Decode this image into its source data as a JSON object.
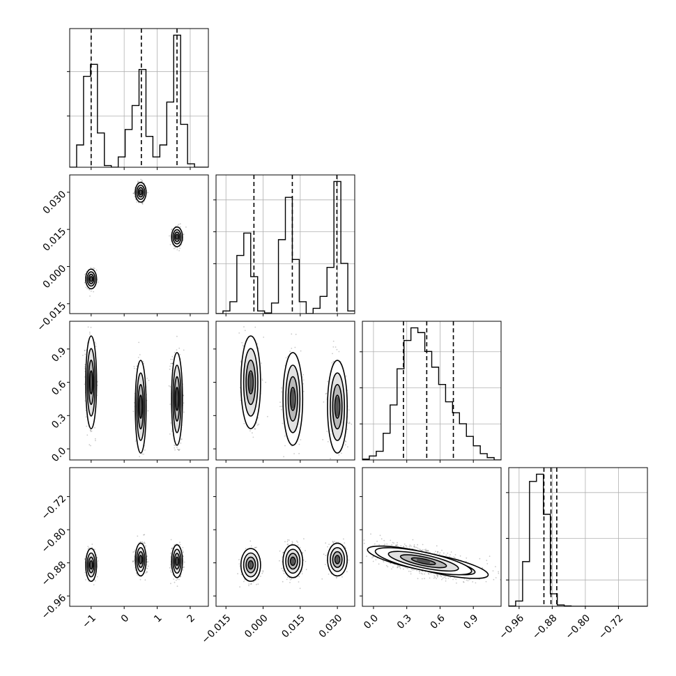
{
  "chart_data": {
    "type": "corner",
    "title": "",
    "parameters": [
      {
        "label": "",
        "range": [
          -1.65,
          2.55
        ],
        "ticks": [
          -1,
          0,
          1,
          2
        ],
        "tick_labels": [
          "−1",
          "0",
          "1",
          "2"
        ]
      },
      {
        "label": "",
        "range": [
          -0.019,
          0.037
        ],
        "ticks": [
          -0.015,
          0.0,
          0.015,
          0.03
        ],
        "tick_labels": [
          "−0.015",
          "0.000",
          "0.015",
          "0.030"
        ]
      },
      {
        "label": "",
        "range": [
          -0.1,
          1.15
        ],
        "ticks": [
          0.0,
          0.3,
          0.6,
          0.9
        ],
        "tick_labels": [
          "0.0",
          "0.3",
          "0.6",
          "0.9"
        ]
      },
      {
        "label": "",
        "range": [
          -0.985,
          -0.65
        ],
        "ticks": [
          -0.96,
          -0.88,
          -0.8,
          -0.72
        ],
        "tick_labels": [
          "−0.96",
          "−0.88",
          "−0.80",
          "−0.72"
        ]
      }
    ],
    "clusters": [
      {
        "p0": -1.0,
        "p1": -0.005,
        "p2": 0.6,
        "p3": -0.885,
        "weight": 0.3
      },
      {
        "p0": 0.5,
        "p1": 0.03,
        "p2": 0.38,
        "p3": -0.872,
        "weight": 0.34
      },
      {
        "p0": 1.6,
        "p1": 0.012,
        "p2": 0.45,
        "p3": -0.876,
        "weight": 0.36
      }
    ],
    "histograms": [
      {
        "parameter": 0,
        "bin_edges": [
          -1.65,
          -1.44,
          -1.23,
          -1.02,
          -0.81,
          -0.6,
          -0.39,
          -0.18,
          0.03,
          0.24,
          0.45,
          0.66,
          0.87,
          1.08,
          1.29,
          1.5,
          1.71,
          1.92,
          2.13,
          2.34,
          2.55
        ],
        "counts": [
          0,
          65,
          265,
          300,
          100,
          5,
          0,
          30,
          110,
          180,
          285,
          90,
          30,
          65,
          190,
          385,
          125,
          10,
          0,
          0
        ],
        "quantiles": [
          -1.0,
          0.52,
          1.6
        ],
        "grid_y": [
          0.37,
          0.69
        ]
      },
      {
        "parameter": 1,
        "bin_edges": [
          -0.019,
          -0.0162,
          -0.0134,
          -0.0106,
          -0.0078,
          -0.005,
          -0.0022,
          0.0006,
          0.0034,
          0.0062,
          0.009,
          0.0118,
          0.0146,
          0.0174,
          0.0202,
          0.023,
          0.0258,
          0.0286,
          0.0314,
          0.0342,
          0.037
        ],
        "counts": [
          0,
          20,
          90,
          440,
          610,
          280,
          20,
          5,
          80,
          560,
          880,
          410,
          90,
          0,
          40,
          130,
          350,
          1000,
          380,
          20
        ],
        "quantiles": [
          -0.0037,
          0.0118,
          0.0298
        ],
        "grid_y": [
          0.36,
          0.59,
          0.82
        ]
      },
      {
        "parameter": 2,
        "bin_edges": [
          -0.1,
          -0.0375,
          0.025,
          0.0875,
          0.15,
          0.2125,
          0.275,
          0.3375,
          0.4,
          0.4625,
          0.525,
          0.5875,
          0.65,
          0.7125,
          0.775,
          0.8375,
          0.9,
          0.9625,
          1.025,
          1.0875,
          1.15
        ],
        "counts": [
          5,
          25,
          55,
          170,
          350,
          580,
          760,
          840,
          810,
          690,
          590,
          480,
          370,
          300,
          230,
          150,
          90,
          40,
          15,
          0
        ],
        "quantiles": [
          0.27,
          0.48,
          0.72
        ],
        "grid_y": [
          0.26,
          0.52,
          0.78
        ]
      },
      {
        "parameter": 3,
        "bin_edges": [
          -0.985,
          -0.9683,
          -0.9515,
          -0.9348,
          -0.918,
          -0.9013,
          -0.8845,
          -0.8678,
          -0.851,
          -0.8343,
          -0.8175,
          -0.8008,
          -0.784,
          -0.7673,
          -0.7505,
          -0.7338,
          -0.717,
          -0.7003,
          -0.6835,
          -0.6668,
          -0.65
        ],
        "counts": [
          2,
          40,
          340,
          950,
          1005,
          700,
          95,
          10,
          3,
          0,
          0,
          0,
          0,
          0,
          0,
          0,
          0,
          0,
          0,
          0
        ],
        "quantiles": [
          -0.9,
          -0.883,
          -0.869
        ],
        "grid_y": [
          0.19,
          0.49,
          0.82
        ]
      }
    ],
    "grid": true
  }
}
